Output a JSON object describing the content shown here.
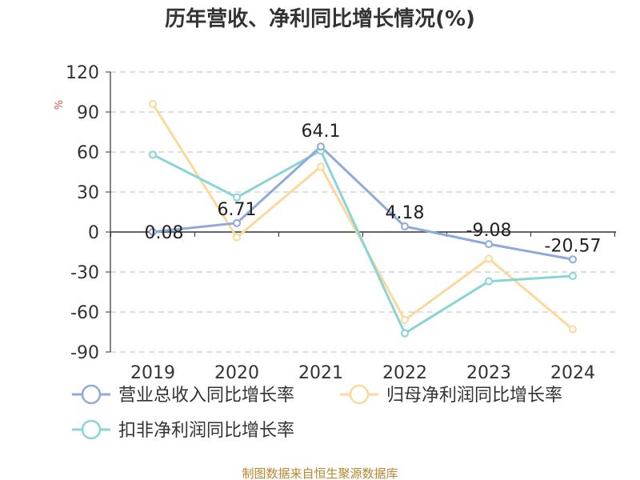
{
  "chart_data": {
    "type": "line",
    "title": "历年营收、净利同比增长情况(%)",
    "ylabel": "%",
    "categories": [
      "2019",
      "2020",
      "2021",
      "2022",
      "2023",
      "2024"
    ],
    "yticks": [
      120,
      90,
      60,
      30,
      0,
      -30,
      -60,
      -90
    ],
    "ylim": [
      -90,
      120
    ],
    "grid": true,
    "legend_position": "bottom",
    "series": [
      {
        "name": "营业总收入同比增长率",
        "color": "#8eaadb",
        "values": [
          0.08,
          6.71,
          64.1,
          4.18,
          -9.08,
          -20.57
        ],
        "labels": [
          "0.08",
          "6.71",
          "64.1",
          "4.18",
          "-9.08",
          "-20.57"
        ]
      },
      {
        "name": "归母净利润同比增长率",
        "color": "#fcd99a",
        "values": [
          96,
          -4,
          49,
          -66,
          -20,
          -73
        ]
      },
      {
        "name": "扣非净利润同比增长率",
        "color": "#8ad4d6",
        "values": [
          58,
          26,
          61,
          -76,
          -37,
          -33
        ]
      }
    ]
  },
  "source": "制图数据来自恒生聚源数据库"
}
